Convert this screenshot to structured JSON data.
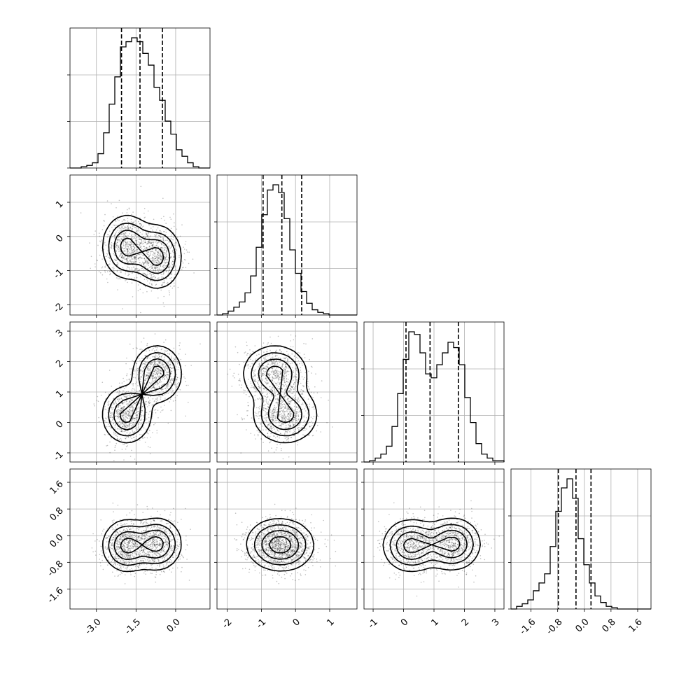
{
  "chart_data": {
    "type": "corner",
    "parameters": 4,
    "grid": true,
    "ranges": [
      [
        -4.0,
        1.3
      ],
      [
        -2.3,
        1.8
      ],
      [
        -1.3,
        3.3
      ],
      [
        -2.2,
        2.0
      ]
    ],
    "ticks": [
      [
        "-3.0",
        "-1.5",
        "0.0"
      ],
      [
        "-2",
        "-1",
        "0",
        "1"
      ],
      [
        "-1",
        "0",
        "1",
        "2",
        "3"
      ],
      [
        "-1.6",
        "-0.8",
        "0.0",
        "0.8",
        "1.6"
      ]
    ],
    "tick_values": [
      [
        -3.0,
        -1.5,
        0.0
      ],
      [
        -2,
        -1,
        0,
        1
      ],
      [
        -1,
        0,
        1,
        2,
        3
      ],
      [
        -1.6,
        -0.8,
        0.0,
        0.8,
        1.6
      ]
    ],
    "quantiles": [
      [
        -2.05,
        -1.35,
        -0.5
      ],
      [
        -0.95,
        -0.4,
        0.18
      ],
      [
        0.08,
        0.87,
        1.8
      ],
      [
        -0.78,
        -0.25,
        0.2
      ]
    ],
    "marginals": [
      [
        0,
        0,
        1,
        2,
        4,
        11,
        27,
        49,
        70,
        93,
        97,
        100,
        97,
        88,
        79,
        62,
        52,
        36,
        26,
        14,
        9,
        4,
        1,
        0,
        0
      ],
      [
        0,
        1,
        3,
        6,
        10,
        17,
        30,
        52,
        77,
        96,
        100,
        94,
        74,
        50,
        32,
        18,
        9,
        4,
        2,
        1,
        0,
        0,
        0,
        0,
        0
      ],
      [
        0,
        1,
        3,
        6,
        12,
        27,
        52,
        78,
        99,
        97,
        83,
        67,
        64,
        74,
        83,
        91,
        87,
        74,
        49,
        30,
        14,
        6,
        3,
        1,
        1
      ],
      [
        0,
        2,
        4,
        7,
        14,
        20,
        27,
        48,
        75,
        93,
        100,
        85,
        54,
        34,
        20,
        10,
        5,
        2,
        1,
        0,
        0,
        0,
        0,
        0,
        0
      ]
    ],
    "components": [
      {
        "weight": 0.5,
        "mean": [
          -1.85,
          -0.3,
          0.25,
          -0.3
        ],
        "sd": [
          0.45,
          0.45,
          0.45,
          0.38
        ]
      },
      {
        "weight": 0.5,
        "mean": [
          -0.7,
          -0.6,
          1.6,
          -0.25
        ],
        "sd": [
          0.45,
          0.45,
          0.45,
          0.38
        ]
      }
    ]
  }
}
